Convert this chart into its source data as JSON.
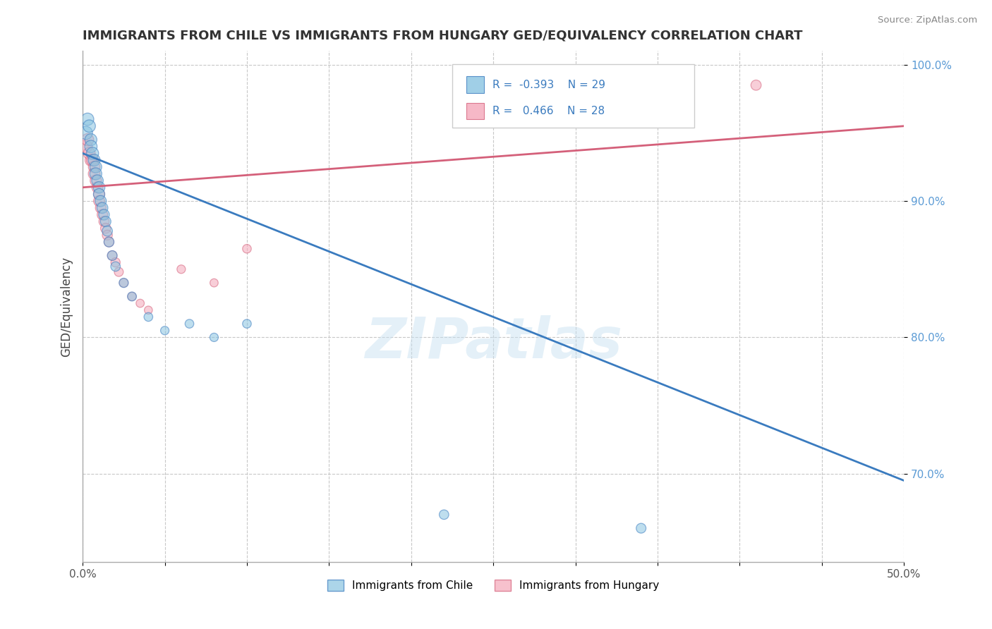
{
  "title": "IMMIGRANTS FROM CHILE VS IMMIGRANTS FROM HUNGARY GED/EQUIVALENCY CORRELATION CHART",
  "source": "Source: ZipAtlas.com",
  "ylabel": "GED/Equivalency",
  "xlim": [
    0.0,
    0.5
  ],
  "ylim": [
    0.635,
    1.01
  ],
  "xticks": [
    0.0,
    0.05,
    0.1,
    0.15,
    0.2,
    0.25,
    0.3,
    0.35,
    0.4,
    0.45,
    0.5
  ],
  "xticklabels": [
    "0.0%",
    "",
    "",
    "",
    "",
    "",
    "",
    "",
    "",
    "",
    "50.0%"
  ],
  "yticks": [
    0.7,
    0.8,
    0.9,
    1.0
  ],
  "yticklabels": [
    "70.0%",
    "80.0%",
    "90.0%",
    "100.0%"
  ],
  "legend_r_chile": "-0.393",
  "legend_n_chile": "29",
  "legend_r_hungary": "0.466",
  "legend_n_hungary": "28",
  "chile_color": "#89c4e1",
  "hungary_color": "#f4a7b9",
  "chile_line_color": "#3a7bbf",
  "hungary_line_color": "#d4607a",
  "watermark": "ZIPatlas",
  "chile_x": [
    0.002,
    0.003,
    0.004,
    0.005,
    0.005,
    0.006,
    0.007,
    0.008,
    0.008,
    0.009,
    0.01,
    0.01,
    0.011,
    0.012,
    0.013,
    0.014,
    0.015,
    0.016,
    0.018,
    0.02,
    0.025,
    0.03,
    0.04,
    0.05,
    0.065,
    0.08,
    0.1,
    0.22,
    0.34
  ],
  "chile_y": [
    0.95,
    0.96,
    0.955,
    0.945,
    0.94,
    0.935,
    0.93,
    0.925,
    0.92,
    0.915,
    0.91,
    0.905,
    0.9,
    0.895,
    0.89,
    0.885,
    0.878,
    0.87,
    0.86,
    0.852,
    0.84,
    0.83,
    0.815,
    0.805,
    0.81,
    0.8,
    0.81,
    0.67,
    0.66
  ],
  "hungary_x": [
    0.002,
    0.003,
    0.004,
    0.005,
    0.006,
    0.007,
    0.007,
    0.008,
    0.009,
    0.01,
    0.01,
    0.011,
    0.012,
    0.013,
    0.014,
    0.015,
    0.016,
    0.018,
    0.02,
    0.022,
    0.025,
    0.03,
    0.035,
    0.04,
    0.06,
    0.08,
    0.1,
    0.41
  ],
  "hungary_y": [
    0.94,
    0.945,
    0.935,
    0.93,
    0.93,
    0.925,
    0.92,
    0.915,
    0.91,
    0.905,
    0.9,
    0.895,
    0.89,
    0.885,
    0.88,
    0.875,
    0.87,
    0.86,
    0.855,
    0.848,
    0.84,
    0.83,
    0.825,
    0.82,
    0.85,
    0.84,
    0.865,
    0.985
  ],
  "chile_sizes": [
    180,
    160,
    160,
    150,
    160,
    155,
    150,
    145,
    150,
    140,
    140,
    135,
    130,
    125,
    120,
    115,
    110,
    105,
    100,
    95,
    90,
    85,
    80,
    75,
    80,
    75,
    80,
    95,
    100
  ],
  "hungary_sizes": [
    170,
    155,
    150,
    145,
    150,
    140,
    145,
    135,
    130,
    130,
    125,
    120,
    115,
    110,
    108,
    105,
    100,
    95,
    90,
    85,
    80,
    75,
    70,
    68,
    75,
    70,
    80,
    110
  ],
  "chile_trendline": [
    0.935,
    0.695
  ],
  "hungary_trendline": [
    0.91,
    0.955
  ]
}
